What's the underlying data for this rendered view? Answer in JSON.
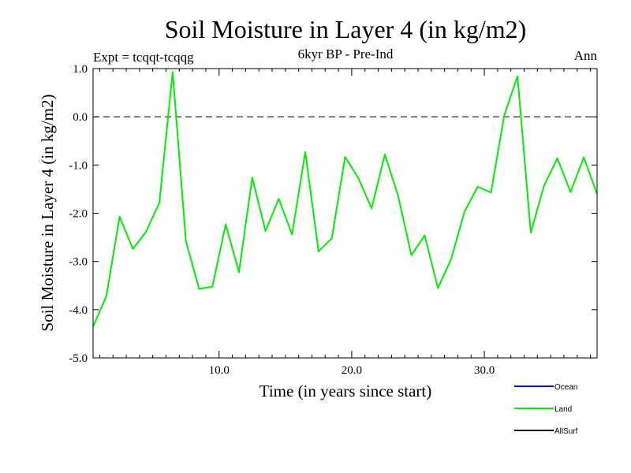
{
  "chart_data": {
    "type": "line",
    "title": "Soil Moisture in Layer 4 (in kg/m2)",
    "subtitle": "6kyr BP - Pre-Ind",
    "experiment_label": "Expt = tcqqt-tcqqg",
    "period_label": "Ann",
    "xlabel": "Time (in years since start)",
    "ylabel": "Soil Moisture in Layer 4 (in kg/m2)",
    "xlim": [
      0.5,
      38.5
    ],
    "ylim": [
      -5.0,
      1.0
    ],
    "x_ticks": [
      10.0,
      20.0,
      30.0
    ],
    "x_tick_labels": [
      "10.0",
      "20.0",
      "30.0"
    ],
    "y_ticks": [
      1.0,
      0.0,
      -1.0,
      -2.0,
      -3.0,
      -4.0,
      -5.0
    ],
    "y_tick_labels": [
      "1.0",
      "0.0",
      "-1.0",
      "-2.0",
      "-3.0",
      "-4.0",
      "-5.0"
    ],
    "reference_line": {
      "y": 0.0,
      "style": "dashed"
    },
    "legend": [
      {
        "name": "Ocean",
        "color": "#0000ff"
      },
      {
        "name": "Land",
        "color": "#00ee00"
      },
      {
        "name": "AllSurf",
        "color": "#000000"
      }
    ],
    "series": [
      {
        "name": "Land",
        "color": "#00ee00",
        "x": [
          0.5,
          1.5,
          2.5,
          3.5,
          4.5,
          5.5,
          6.5,
          7.5,
          8.5,
          9.5,
          10.5,
          11.5,
          12.5,
          13.5,
          14.5,
          15.5,
          16.5,
          17.5,
          18.5,
          19.5,
          20.5,
          21.5,
          22.5,
          23.5,
          24.5,
          25.5,
          26.5,
          27.5,
          28.5,
          29.5,
          30.5,
          31.5,
          32.5,
          33.5,
          34.5,
          35.5,
          36.5,
          37.5,
          38.5
        ],
        "values": [
          -4.35,
          -3.72,
          -2.07,
          -2.74,
          -2.38,
          -1.78,
          0.93,
          -2.58,
          -3.57,
          -3.52,
          -2.23,
          -3.22,
          -1.26,
          -2.37,
          -1.7,
          -2.44,
          -0.73,
          -2.79,
          -2.52,
          -0.83,
          -1.27,
          -1.9,
          -0.78,
          -1.64,
          -2.87,
          -2.46,
          -3.55,
          -2.95,
          -1.97,
          -1.45,
          -1.57,
          0.03,
          0.84,
          -2.4,
          -1.43,
          -0.86,
          -1.56,
          -0.84,
          -1.6
        ]
      }
    ]
  }
}
